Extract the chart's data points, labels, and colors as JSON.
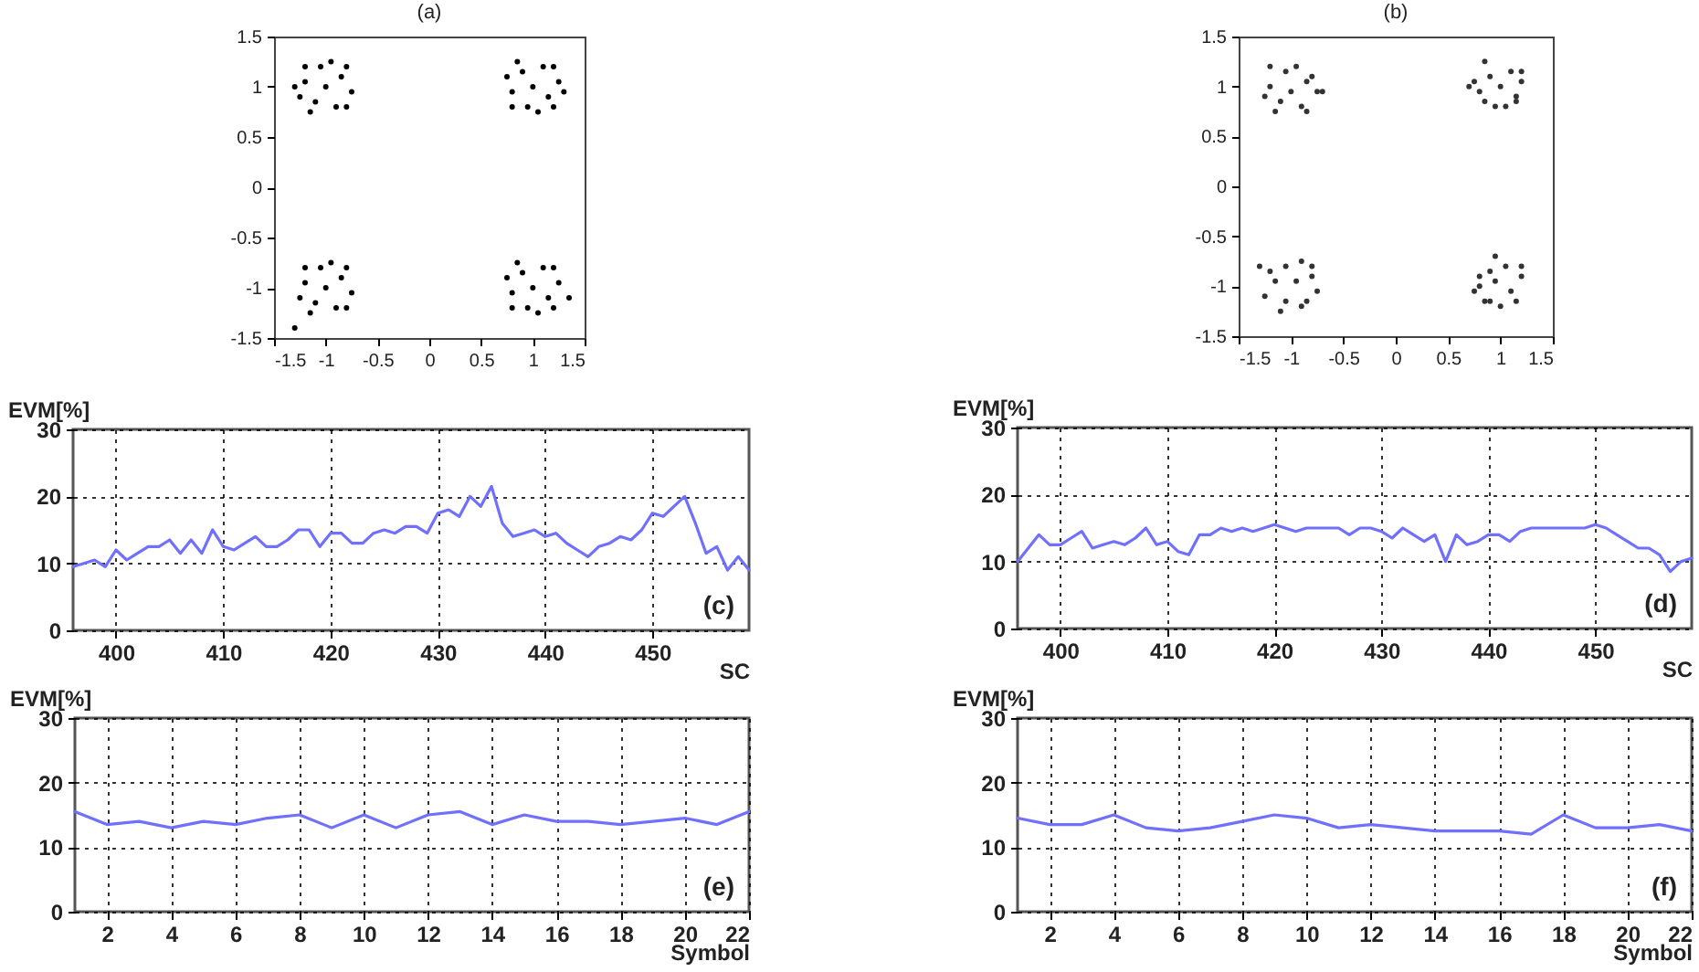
{
  "chart_data": [
    {
      "type": "scatter",
      "title": "(a)",
      "xlim": [
        -1.5,
        1.5
      ],
      "xticks": [
        -1.5,
        -1,
        -0.5,
        0,
        0.5,
        1,
        1.5
      ],
      "ylim": [
        -1.5,
        1.5
      ],
      "yticks": [
        -1.5,
        -1,
        -0.5,
        0,
        0.5,
        1,
        1.5
      ],
      "grid": false,
      "marker": "circle",
      "series": [
        {
          "color": "#000000",
          "x": [
            -1,
            -0.85,
            -1.2,
            -0.9,
            -1.1,
            -0.75,
            -1.25,
            -0.95,
            -1.05,
            -0.8,
            -1.2,
            -0.8,
            -1.15,
            -1.3,
            1,
            1.15,
            0.8,
            1.1,
            0.9,
            1.25,
            0.75,
            1.05,
            0.95,
            1.2,
            0.8,
            1.2,
            0.85,
            1.3,
            -1,
            -0.85,
            -1.2,
            -0.9,
            -1.1,
            -0.75,
            -1.25,
            -0.95,
            -1.05,
            -0.8,
            -1.2,
            -0.8,
            -1.15,
            -1.3,
            1,
            1.15,
            0.8,
            1.1,
            0.9,
            1.25,
            0.75,
            1.05,
            0.95,
            1.2,
            0.8,
            1.2,
            0.85,
            1.35
          ],
          "values": [
            1,
            1.1,
            1.05,
            0.8,
            0.85,
            0.95,
            0.9,
            1.25,
            1.2,
            1.2,
            1.2,
            0.8,
            0.75,
            1,
            1,
            0.9,
            0.95,
            1.2,
            1.15,
            1.05,
            1.1,
            0.75,
            0.8,
            0.8,
            0.8,
            1.2,
            1.25,
            0.95,
            -1,
            -0.9,
            -0.95,
            -1.2,
            -1.15,
            -1.05,
            -1.1,
            -0.75,
            -0.8,
            -0.8,
            -0.8,
            -1.2,
            -1.25,
            -1.4,
            -1,
            -1.1,
            -1.05,
            -0.8,
            -0.85,
            -0.95,
            -0.9,
            -1.25,
            -1.2,
            -1.2,
            -1.2,
            -0.8,
            -0.75,
            -1.1
          ]
        }
      ]
    },
    {
      "type": "scatter",
      "title": "(b)",
      "xlim": [
        -1.5,
        1.5
      ],
      "xticks": [
        -1.5,
        -1,
        -0.5,
        0,
        0.5,
        1,
        1.5
      ],
      "ylim": [
        -1.5,
        1.5
      ],
      "yticks": [
        -1.5,
        -1,
        -0.5,
        0,
        0.5,
        1,
        1.5
      ],
      "grid": false,
      "marker": "circle",
      "series": [
        {
          "color": "#333333",
          "x": [
            -1,
            -0.85,
            -1.2,
            -0.9,
            -1.1,
            -0.75,
            -1.25,
            -0.95,
            -1.05,
            -0.8,
            -1.2,
            -0.85,
            -1.15,
            -0.7,
            1,
            1.15,
            0.8,
            1.1,
            0.9,
            1.2,
            0.75,
            1.05,
            0.95,
            1.15,
            0.85,
            1.2,
            0.85,
            0.7,
            -0.95,
            -0.8,
            -1.15,
            -0.9,
            -1.05,
            -0.75,
            -1.25,
            -0.9,
            -1.05,
            -0.8,
            -1.2,
            -0.85,
            -1.1,
            -1.3,
            0.95,
            1.1,
            0.8,
            1.05,
            0.9,
            1.2,
            0.8,
            1.0,
            0.9,
            1.15,
            0.85,
            1.2,
            0.95,
            0.75
          ],
          "values": [
            0.95,
            1.05,
            1.0,
            0.8,
            0.85,
            0.95,
            0.9,
            1.2,
            1.15,
            1.1,
            1.2,
            0.75,
            0.75,
            0.95,
            1,
            0.9,
            0.95,
            1.15,
            1.1,
            1.05,
            1.05,
            0.8,
            0.8,
            0.85,
            0.85,
            1.15,
            1.25,
            1.0,
            -0.95,
            -0.9,
            -0.95,
            -1.2,
            -1.15,
            -1.05,
            -1.1,
            -0.75,
            -0.8,
            -0.8,
            -0.85,
            -1.15,
            -1.25,
            -0.8,
            -0.95,
            -1.05,
            -1.0,
            -0.8,
            -0.85,
            -0.9,
            -0.9,
            -1.2,
            -1.15,
            -1.15,
            -1.15,
            -0.8,
            -0.7,
            -1.05
          ]
        }
      ]
    },
    {
      "type": "line",
      "ylabel": "EVM[%]",
      "xlabel": "SC",
      "annotations": [
        "(c)"
      ],
      "xlim": [
        396,
        459
      ],
      "xticks": [
        400,
        410,
        420,
        430,
        440,
        450
      ],
      "ylim": [
        0,
        30
      ],
      "yticks": [
        0,
        10,
        20,
        30
      ],
      "grid": true,
      "x": [
        396,
        397,
        398,
        399,
        400,
        401,
        402,
        403,
        404,
        405,
        406,
        407,
        408,
        409,
        410,
        411,
        412,
        413,
        414,
        415,
        416,
        417,
        418,
        419,
        420,
        421,
        422,
        423,
        424,
        425,
        426,
        427,
        428,
        429,
        430,
        431,
        432,
        433,
        434,
        435,
        436,
        437,
        438,
        439,
        440,
        441,
        442,
        443,
        444,
        445,
        446,
        447,
        448,
        449,
        450,
        451,
        452,
        453,
        454,
        455,
        456,
        457,
        458,
        459
      ],
      "series": [
        {
          "color": "#7070ff",
          "values": [
            9.5,
            10,
            10.5,
            9.5,
            12,
            10.5,
            11.5,
            12.5,
            12.5,
            13.5,
            11.5,
            13.5,
            11.5,
            15,
            12.5,
            12,
            13,
            14,
            12.5,
            12.5,
            13.5,
            15,
            15,
            12.5,
            14.5,
            14.5,
            13,
            13,
            14.5,
            15,
            14.5,
            15.5,
            15.5,
            14.5,
            17.5,
            18,
            17,
            20,
            18.5,
            21.5,
            16,
            14,
            14.5,
            15,
            14,
            14.5,
            13,
            12,
            11,
            12.5,
            13,
            14,
            13.5,
            15,
            17.5,
            17,
            18.5,
            20,
            16,
            11.5,
            12.5,
            9,
            11,
            9
          ]
        }
      ]
    },
    {
      "type": "line",
      "ylabel": "EVM[%]",
      "xlabel": "SC",
      "annotations": [
        "(d)"
      ],
      "xlim": [
        396,
        459
      ],
      "xticks": [
        400,
        410,
        420,
        430,
        440,
        450
      ],
      "ylim": [
        0,
        30
      ],
      "yticks": [
        0,
        10,
        20,
        30
      ],
      "grid": true,
      "x": [
        396,
        397,
        398,
        399,
        400,
        401,
        402,
        403,
        404,
        405,
        406,
        407,
        408,
        409,
        410,
        411,
        412,
        413,
        414,
        415,
        416,
        417,
        418,
        419,
        420,
        421,
        422,
        423,
        424,
        425,
        426,
        427,
        428,
        429,
        430,
        431,
        432,
        433,
        434,
        435,
        436,
        437,
        438,
        439,
        440,
        441,
        442,
        443,
        444,
        445,
        446,
        447,
        448,
        449,
        450,
        451,
        452,
        453,
        454,
        455,
        456,
        457,
        458,
        459
      ],
      "series": [
        {
          "color": "#7070ff",
          "values": [
            10,
            12,
            14,
            12.5,
            12.5,
            13.5,
            14.5,
            12,
            12.5,
            13,
            12.5,
            13.5,
            15,
            12.5,
            13,
            11.5,
            11,
            14,
            14,
            15,
            14.5,
            15,
            14.5,
            15,
            15.5,
            15,
            14.5,
            15,
            15,
            15,
            15,
            14,
            15,
            15,
            14.5,
            13.5,
            15,
            14,
            13,
            14,
            10,
            14,
            12.5,
            13,
            14,
            14,
            13,
            14.5,
            15,
            15,
            15,
            15,
            15,
            15,
            15.5,
            15,
            14,
            13,
            12,
            12,
            11,
            8.5,
            10,
            10.5
          ]
        }
      ]
    },
    {
      "type": "line",
      "ylabel": "EVM[%]",
      "xlabel": "Symbol",
      "annotations": [
        "(e)"
      ],
      "xlim": [
        1,
        22
      ],
      "xticks": [
        2,
        4,
        6,
        8,
        10,
        12,
        14,
        16,
        18,
        20,
        22
      ],
      "ylim": [
        0,
        30
      ],
      "yticks": [
        0,
        10,
        20,
        30
      ],
      "grid": true,
      "x": [
        1,
        2,
        3,
        4,
        5,
        6,
        7,
        8,
        9,
        10,
        11,
        12,
        13,
        14,
        15,
        16,
        17,
        18,
        19,
        20,
        21,
        22
      ],
      "series": [
        {
          "color": "#7070ff",
          "values": [
            15.5,
            13.5,
            14,
            13,
            14,
            13.5,
            14.5,
            15,
            13,
            15,
            13,
            15,
            15.5,
            13.5,
            15,
            14,
            14,
            13.5,
            14,
            14.5,
            13.5,
            15.5
          ]
        }
      ]
    },
    {
      "type": "line",
      "ylabel": "EVM[%]",
      "xlabel": "Symbol",
      "annotations": [
        "(f)"
      ],
      "xlim": [
        1,
        22
      ],
      "xticks": [
        2,
        4,
        6,
        8,
        10,
        12,
        14,
        16,
        18,
        20,
        22
      ],
      "ylim": [
        0,
        30
      ],
      "yticks": [
        0,
        10,
        20,
        30
      ],
      "grid": true,
      "x": [
        1,
        2,
        3,
        4,
        5,
        6,
        7,
        8,
        9,
        10,
        11,
        12,
        13,
        14,
        15,
        16,
        17,
        18,
        19,
        20,
        21,
        22
      ],
      "series": [
        {
          "color": "#7070ff",
          "values": [
            14.5,
            13.5,
            13.5,
            15,
            13,
            12.5,
            13,
            14,
            15,
            14.5,
            13,
            13.5,
            13,
            12.5,
            12.5,
            12.5,
            12,
            15,
            13,
            13,
            13.5,
            12.5
          ]
        }
      ]
    }
  ]
}
